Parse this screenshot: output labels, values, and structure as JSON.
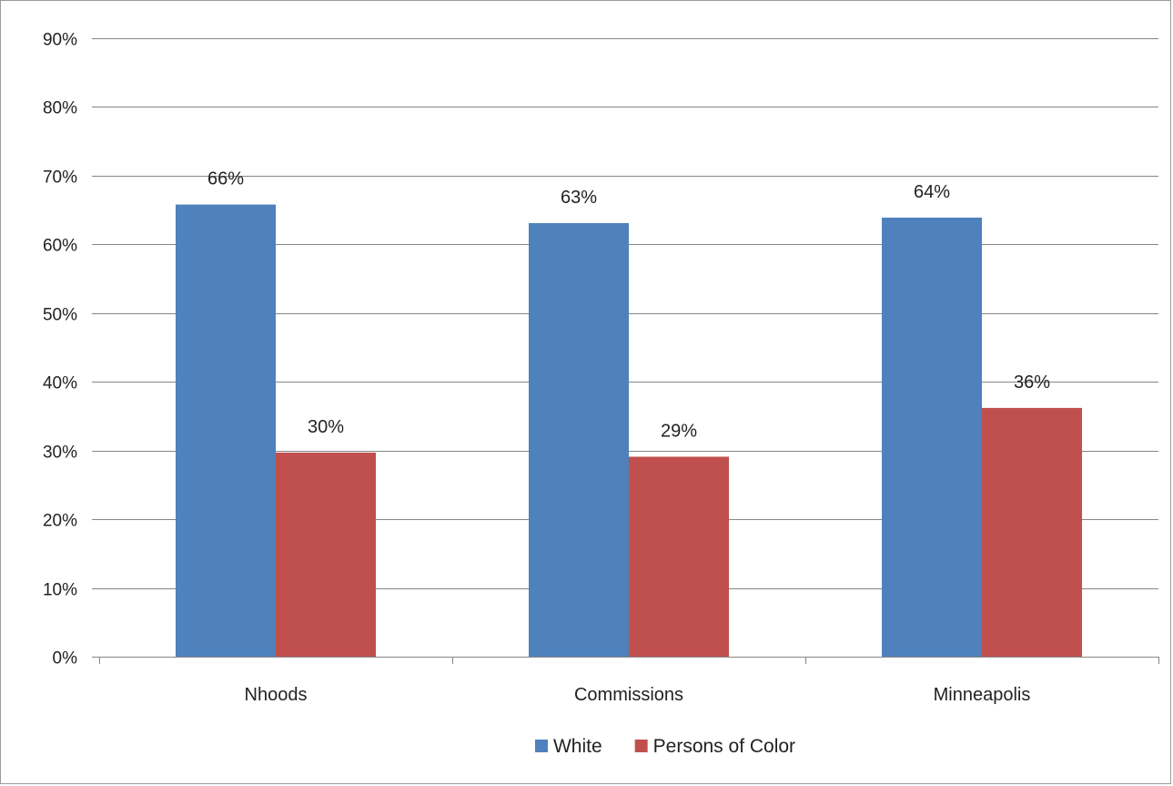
{
  "chart_data": {
    "type": "bar",
    "title": "",
    "xlabel": "",
    "ylabel": "",
    "categories": [
      "Nhoods",
      "Commissions",
      "Minneapolis"
    ],
    "series": [
      {
        "name": "White",
        "values": [
          66,
          63,
          64
        ],
        "labels": [
          "66%",
          "63%",
          "64%"
        ],
        "color": "#4F81BD"
      },
      {
        "name": "Persons of Color",
        "values": [
          30,
          29,
          36
        ],
        "labels": [
          "30%",
          "29%",
          "36%"
        ],
        "color": "#C0504D"
      }
    ],
    "exact_values": {
      "White": [
        65.8,
        63.1,
        63.9
      ],
      "Persons of Color": [
        29.7,
        29.1,
        36.2
      ]
    },
    "ylim": [
      0,
      90
    ],
    "yticks": [
      0,
      10,
      20,
      30,
      40,
      50,
      60,
      70,
      80,
      90
    ],
    "ytick_labels": [
      "0%",
      "10%",
      "20%",
      "30%",
      "40%",
      "50%",
      "60%",
      "70%",
      "80%",
      "90%"
    ],
    "grid": true,
    "legend_position": "bottom",
    "gridline_color": "#868686"
  }
}
